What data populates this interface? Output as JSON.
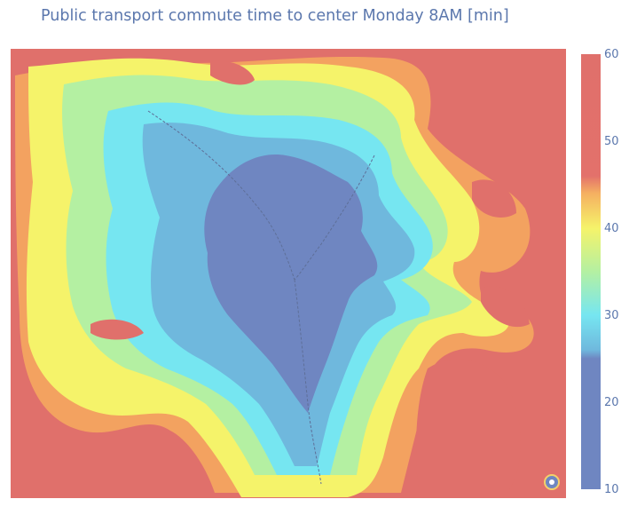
{
  "title": "Public transport commute time to center Monday 8AM [min]",
  "colorbar": {
    "min": 10,
    "max": 60,
    "ticks": [
      "60",
      "50",
      "40",
      "30",
      "20",
      "10"
    ],
    "stops": [
      {
        "value": 10,
        "color": "#6f86c1"
      },
      {
        "value": 25,
        "color": "#6f86c1"
      },
      {
        "value": 26,
        "color": "#6fb8dd"
      },
      {
        "value": 30,
        "color": "#76e6f1"
      },
      {
        "value": 35,
        "color": "#b4f0a2"
      },
      {
        "value": 40,
        "color": "#f5f36a"
      },
      {
        "value": 44,
        "color": "#f5b061"
      },
      {
        "value": 46,
        "color": "#e3716b"
      },
      {
        "value": 60,
        "color": "#e0706b"
      }
    ]
  },
  "colors": {
    "title": "#5b77ad",
    "background": "#ffffff"
  },
  "icons": [
    "center-marker-icon"
  ]
}
